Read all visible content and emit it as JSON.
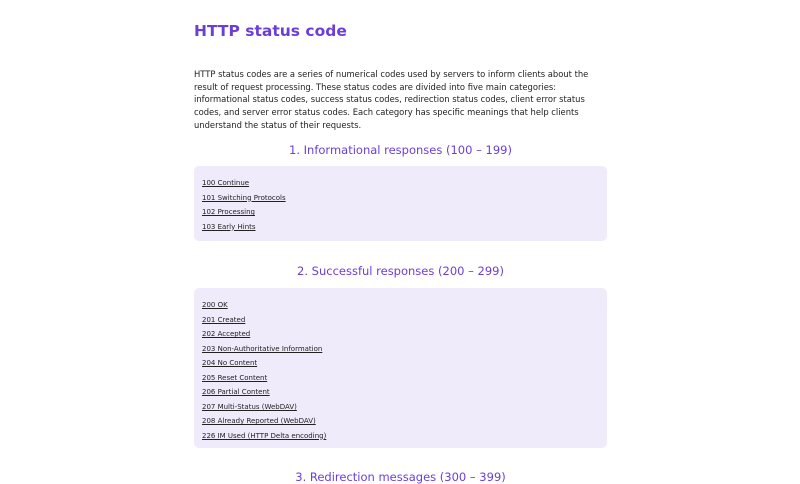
{
  "title": "HTTP status code",
  "intro": "HTTP status codes are a series of numerical codes used by servers to inform clients about the result of request processing. These status codes are divided into five main categories: informational status codes, success status codes, redirection status codes, client error status codes, and server error status codes. Each category has specific meanings that help clients understand the status of their requests.",
  "sections": [
    {
      "heading": "1. Informational responses (100 – 199)",
      "items": [
        "100 Continue",
        "101 Switching Protocols",
        "102 Processing",
        "103 Early Hints"
      ]
    },
    {
      "heading": "2. Successful responses (200 – 299)",
      "items": [
        "200 OK",
        "201 Created",
        "202 Accepted",
        "203 Non-Authoritative Information",
        "204 No Content",
        "205 Reset Content",
        "206 Partial Content",
        "207 Multi-Status (WebDAV)",
        "208 Already Reported (WebDAV)",
        "226 IM Used (HTTP Delta encoding)"
      ]
    },
    {
      "heading": "3. Redirection messages (300 – 399)"
    }
  ]
}
